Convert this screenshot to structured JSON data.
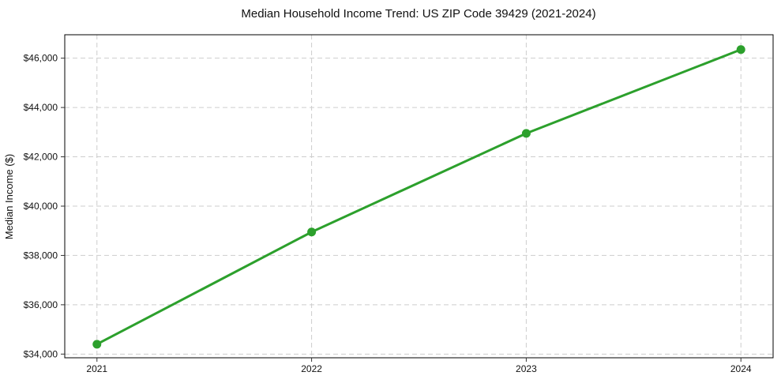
{
  "figure": {
    "title": "Median Household Income Trend: US ZIP Code 39429 (2021-2024)",
    "ylabel": "Median Income ($)"
  },
  "chart_data": {
    "type": "line",
    "title": "Median Household Income Trend: US ZIP Code 39429 (2021-2024)",
    "xlabel": "",
    "ylabel": "Median Income ($)",
    "x": [
      2021,
      2022,
      2023,
      2024
    ],
    "categories": [
      "2021",
      "2022",
      "2023",
      "2024"
    ],
    "series": [
      {
        "name": "Median Household Income",
        "values": [
          34400,
          38950,
          42950,
          46350
        ]
      }
    ],
    "y_ticks": [
      34000,
      36000,
      38000,
      40000,
      42000,
      44000,
      46000
    ],
    "y_tick_labels": [
      "$34,000",
      "$36,000",
      "$38,000",
      "$40,000",
      "$42,000",
      "$44,000",
      "$46,000"
    ],
    "xlim": [
      2020.85,
      2024.15
    ],
    "ylim": [
      33850,
      46950
    ],
    "grid": true,
    "grid_style": "dashed",
    "legend_position": "none",
    "line_color": "#2ca02c",
    "marker": "circle",
    "marker_radius": 5.5,
    "line_width": 3,
    "grid_color": "#cdcdcd",
    "spine_color": "#000000",
    "tick_color": "#333333",
    "text_color": "#111111"
  }
}
